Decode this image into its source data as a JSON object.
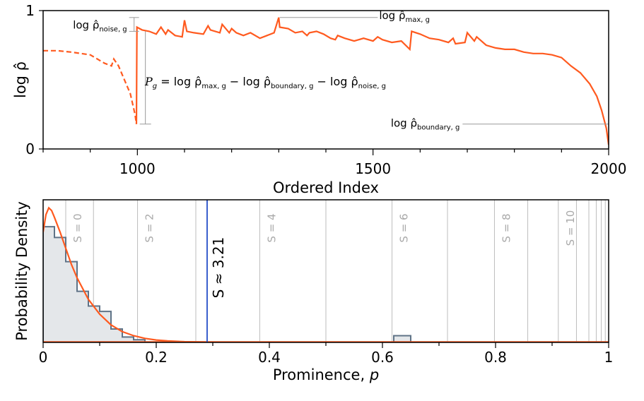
{
  "chart_data": [
    {
      "type": "line",
      "xlabel": "Ordered Index",
      "ylabel": "log ρ̂",
      "xlim": [
        800,
        2000
      ],
      "ylim": [
        0,
        1
      ],
      "xticks": [
        1000,
        1500,
        2000
      ],
      "yticks": [
        0,
        1
      ],
      "color": "#ff5a1f",
      "series": [
        {
          "style": "dashed",
          "x": [
            800,
            830,
            860,
            900,
            930,
            945,
            950,
            960,
            970,
            985,
            995,
            998
          ],
          "y": [
            0.71,
            0.71,
            0.7,
            0.68,
            0.62,
            0.6,
            0.65,
            0.6,
            0.52,
            0.4,
            0.25,
            0.18
          ]
        },
        {
          "style": "solid",
          "x": [
            998,
            999,
            1010,
            1025,
            1040,
            1050,
            1060,
            1065,
            1080,
            1095,
            1100,
            1105,
            1120,
            1140,
            1150,
            1155,
            1175,
            1180,
            1195,
            1200,
            1210,
            1225,
            1240,
            1260,
            1275,
            1290,
            1300,
            1302,
            1320,
            1335,
            1350,
            1360,
            1365,
            1380,
            1395,
            1410,
            1420,
            1425,
            1440,
            1460,
            1480,
            1500,
            1510,
            1520,
            1540,
            1560,
            1578,
            1582,
            1600,
            1620,
            1640,
            1660,
            1670,
            1675,
            1695,
            1700,
            1715,
            1720,
            1740,
            1760,
            1780,
            1800,
            1820,
            1840,
            1860,
            1880,
            1900,
            1920,
            1940,
            1960,
            1975,
            1985,
            1995,
            2000
          ],
          "y": [
            0.18,
            0.88,
            0.86,
            0.85,
            0.83,
            0.88,
            0.83,
            0.86,
            0.82,
            0.81,
            0.93,
            0.85,
            0.84,
            0.83,
            0.89,
            0.86,
            0.84,
            0.9,
            0.84,
            0.87,
            0.84,
            0.82,
            0.84,
            0.8,
            0.82,
            0.84,
            0.95,
            0.88,
            0.87,
            0.84,
            0.85,
            0.82,
            0.84,
            0.85,
            0.83,
            0.8,
            0.79,
            0.82,
            0.8,
            0.78,
            0.8,
            0.78,
            0.81,
            0.79,
            0.77,
            0.78,
            0.72,
            0.85,
            0.83,
            0.8,
            0.79,
            0.77,
            0.8,
            0.76,
            0.77,
            0.84,
            0.78,
            0.81,
            0.75,
            0.73,
            0.72,
            0.72,
            0.7,
            0.69,
            0.69,
            0.68,
            0.66,
            0.6,
            0.55,
            0.47,
            0.38,
            0.28,
            0.15,
            0.03
          ]
        }
      ],
      "annotations": {
        "noise": {
          "label_base": "log ρ̂",
          "label_sub": "noise, g",
          "x": 993,
          "y_top": 0.95,
          "y_bottom": 0.85
        },
        "max": {
          "label_base": "log ρ̂",
          "label_sub": "max, g",
          "x_start": 1302,
          "x_end": 1510,
          "y": 0.95
        },
        "boundary": {
          "label_base": "log ρ̂",
          "label_sub": "boundary, g",
          "x_start": 1690,
          "x_end": 2000,
          "y": 0.18
        },
        "prominence_bar": {
          "x": 1017,
          "y_top": 0.85,
          "y_bottom": 0.18
        },
        "formula": {
          "lhs": "P",
          "lhs_sub": "g",
          "terms": [
            {
              "text": " = log ρ̂",
              "sub": "max, g"
            },
            {
              "text": " − log ρ̂",
              "sub": "boundary, g"
            },
            {
              "text": " − log ρ̂",
              "sub": "noise, g"
            }
          ]
        }
      }
    },
    {
      "type": "bar",
      "xlabel": "Prominence, p",
      "xlabel_base": "Prominence, ",
      "xlabel_var": "p",
      "ylabel": "Probability Density",
      "xlim": [
        0,
        1
      ],
      "xticks": [
        0,
        0.2,
        0.4,
        0.6,
        0.8,
        1
      ],
      "xtick_labels": [
        "0",
        "0.2",
        "0.4",
        "0.6",
        "0.8",
        "1"
      ],
      "hist_color": "#5f7387",
      "hist_fill": "#e4e7ea",
      "fit_color": "#ff5a1f",
      "threshold_color": "#3a5fcd",
      "bins": {
        "edges": [
          0,
          0.02,
          0.04,
          0.06,
          0.08,
          0.1,
          0.12,
          0.14,
          0.16,
          0.18,
          0.62,
          0.65
        ],
        "heights": [
          0.86,
          0.78,
          0.6,
          0.38,
          0.27,
          0.23,
          0.1,
          0.04,
          0.02,
          0.0,
          0.05
        ]
      },
      "fit_curve": {
        "x": [
          0,
          0.005,
          0.01,
          0.015,
          0.02,
          0.03,
          0.04,
          0.05,
          0.06,
          0.08,
          0.1,
          0.12,
          0.14,
          0.16,
          0.18,
          0.2,
          0.22,
          0.25,
          0.3,
          0.4,
          0.6,
          0.8,
          1.0
        ],
        "y": [
          0.82,
          0.95,
          1.0,
          0.98,
          0.93,
          0.82,
          0.7,
          0.58,
          0.48,
          0.32,
          0.21,
          0.13,
          0.08,
          0.05,
          0.03,
          0.018,
          0.011,
          0.005,
          0.002,
          0.0005,
          0.0,
          0.0,
          0.0
        ],
        "ymax": 1.06
      },
      "s_lines": [
        {
          "x": 0.04,
          "label": "S = 0"
        },
        {
          "x": 0.089,
          "label": ""
        },
        {
          "x": 0.167,
          "label": "S = 2"
        },
        {
          "x": 0.27,
          "label": ""
        },
        {
          "x": 0.383,
          "label": "S = 4"
        },
        {
          "x": 0.5,
          "label": ""
        },
        {
          "x": 0.617,
          "label": "S = 6"
        },
        {
          "x": 0.715,
          "label": ""
        },
        {
          "x": 0.798,
          "label": "S = 8"
        },
        {
          "x": 0.857,
          "label": ""
        },
        {
          "x": 0.911,
          "label": "S = 10"
        },
        {
          "x": 0.943,
          "label": ""
        },
        {
          "x": 0.965,
          "label": ""
        },
        {
          "x": 0.978,
          "label": ""
        },
        {
          "x": 0.987,
          "label": ""
        },
        {
          "x": 0.994,
          "label": ""
        }
      ],
      "threshold": {
        "x": 0.29,
        "label": "S ≈ 3.21"
      }
    }
  ]
}
